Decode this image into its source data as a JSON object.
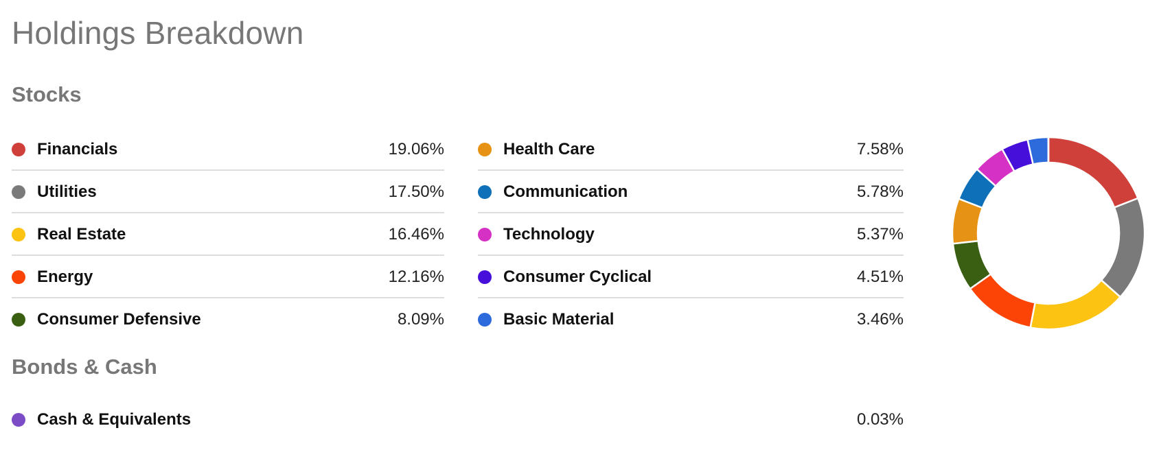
{
  "title": "Holdings Breakdown",
  "sections": {
    "stocks": "Stocks",
    "bonds": "Bonds & Cash"
  },
  "stocks": [
    {
      "label": "Financials",
      "value": "19.06%",
      "color": "#d0403a",
      "pct": 19.06
    },
    {
      "label": "Utilities",
      "value": "17.50%",
      "color": "#7a7a7a",
      "pct": 17.5
    },
    {
      "label": "Real Estate",
      "value": "16.46%",
      "color": "#fcc312",
      "pct": 16.46
    },
    {
      "label": "Energy",
      "value": "12.16%",
      "color": "#fb4405",
      "pct": 12.16
    },
    {
      "label": "Consumer Defensive",
      "value": "8.09%",
      "color": "#3b5f12",
      "pct": 8.09
    },
    {
      "label": "Health Care",
      "value": "7.58%",
      "color": "#e69315",
      "pct": 7.58
    },
    {
      "label": "Communication",
      "value": "5.78%",
      "color": "#0d70b8",
      "pct": 5.78
    },
    {
      "label": "Technology",
      "value": "5.37%",
      "color": "#d531c5",
      "pct": 5.37
    },
    {
      "label": "Consumer Cyclical",
      "value": "4.51%",
      "color": "#4710da",
      "pct": 4.51
    },
    {
      "label": "Basic Material",
      "value": "3.46%",
      "color": "#2d6bdc",
      "pct": 3.46
    }
  ],
  "bonds": [
    {
      "label": "Cash & Equivalents",
      "value": "0.03%",
      "color": "#7b4cc6",
      "pct": 0.03
    }
  ]
}
